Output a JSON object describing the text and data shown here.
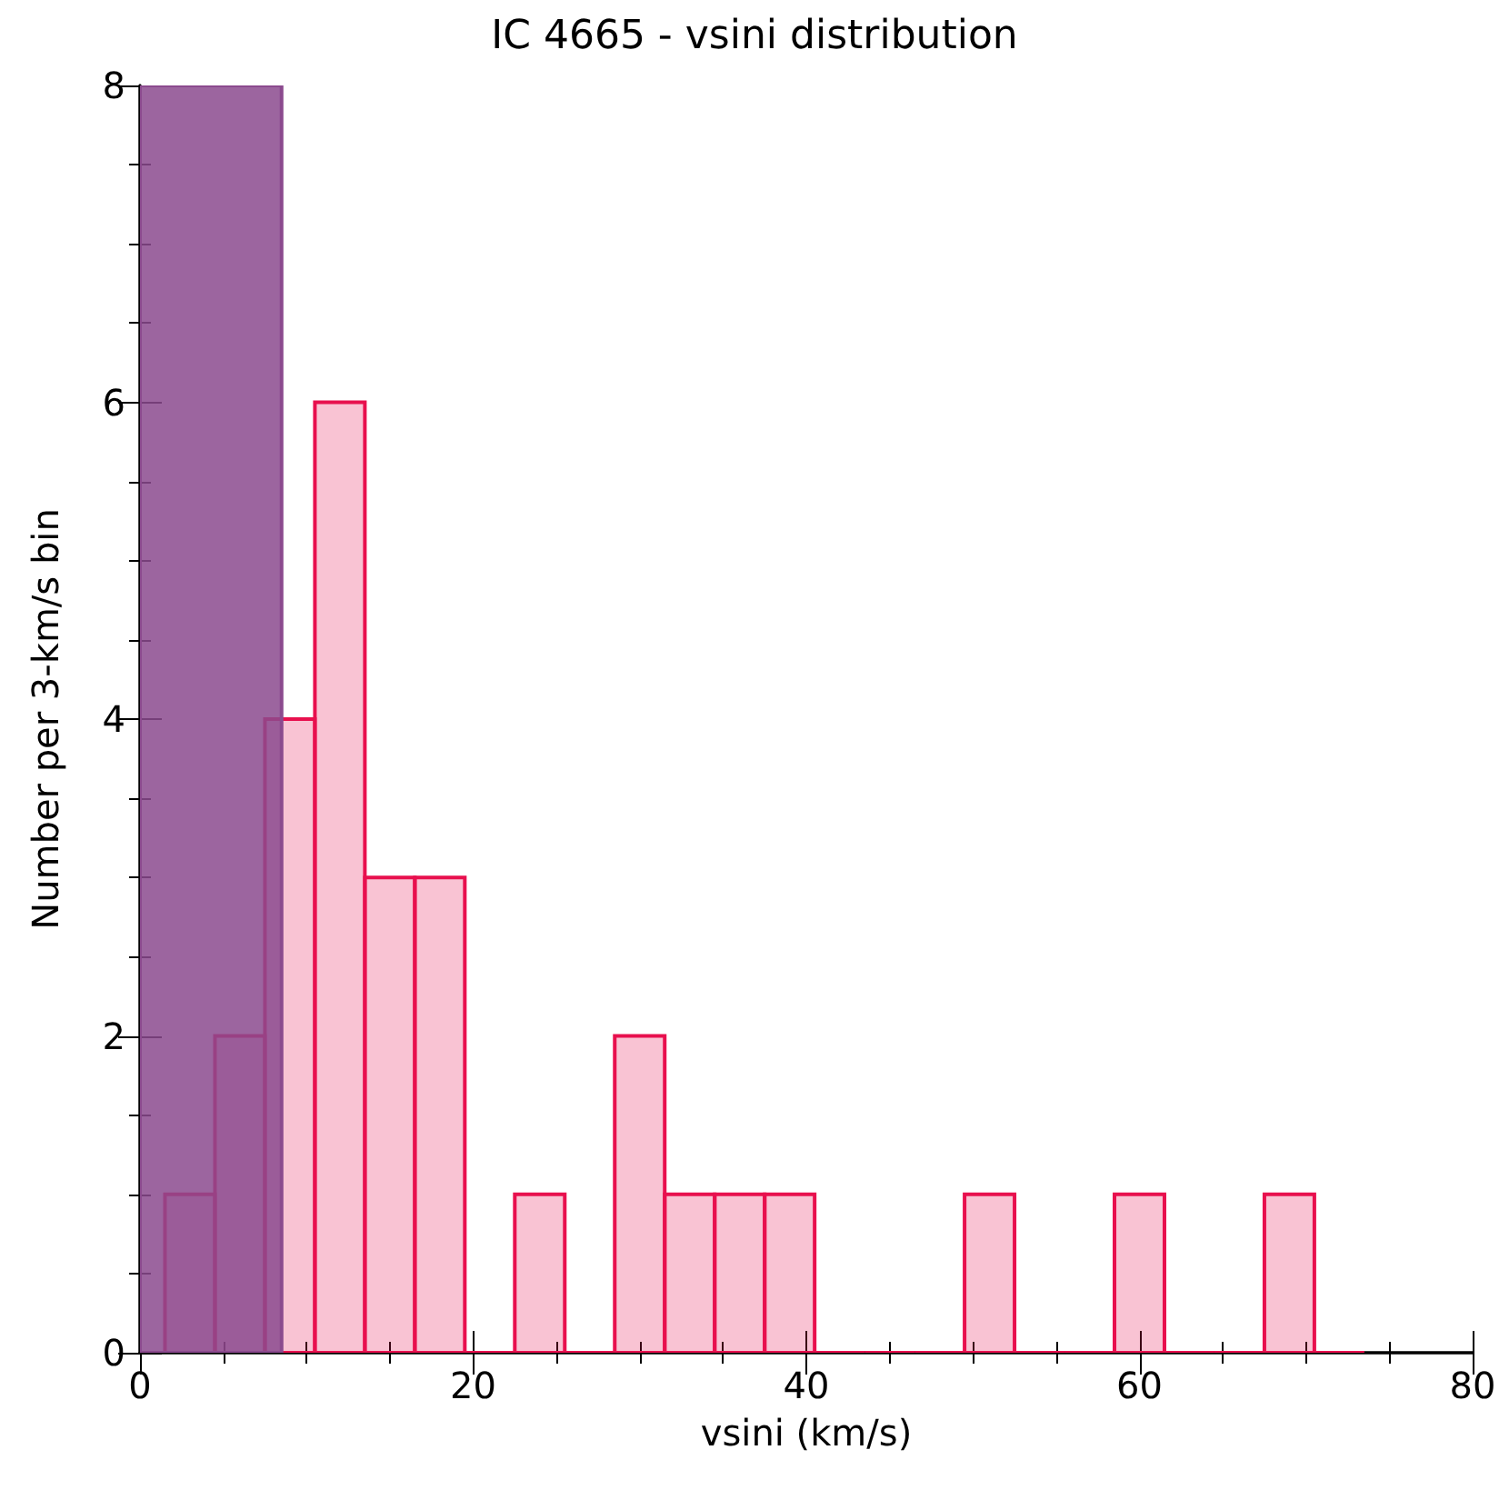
{
  "chart_data": {
    "type": "histogram",
    "title": "IC 4665 - vsini distribution",
    "xlabel": "vsini (km/s)",
    "ylabel": "Number per 3-km/s bin",
    "xlim": [
      0,
      80
    ],
    "xticks": [
      0,
      20,
      40,
      60,
      80
    ],
    "ylim": [
      0,
      8
    ],
    "yticks": [
      0,
      2,
      4,
      6,
      8
    ],
    "grid": false,
    "bins": [
      -1.5,
      1.5,
      4.5,
      7.5,
      10.5,
      13.5,
      16.5,
      19.5,
      22.5,
      25.5,
      28.5,
      31.5,
      34.5,
      37.5,
      40.5,
      43.5,
      46.5,
      49.5,
      52.5,
      55.5,
      58.5,
      61.5,
      64.5,
      67.5,
      70.5,
      73.5
    ],
    "series": [
      {
        "color": "#e8104e",
        "values": [
          0,
          1,
          2,
          4,
          6,
          3,
          3,
          0,
          1,
          0,
          2,
          1,
          1,
          1,
          0,
          0,
          0,
          1,
          0,
          0,
          1,
          0,
          0,
          1,
          0
        ]
      },
      {
        "color": "#8b4a8e",
        "bins": [
          0,
          8.5
        ],
        "values": [
          8
        ]
      }
    ]
  }
}
